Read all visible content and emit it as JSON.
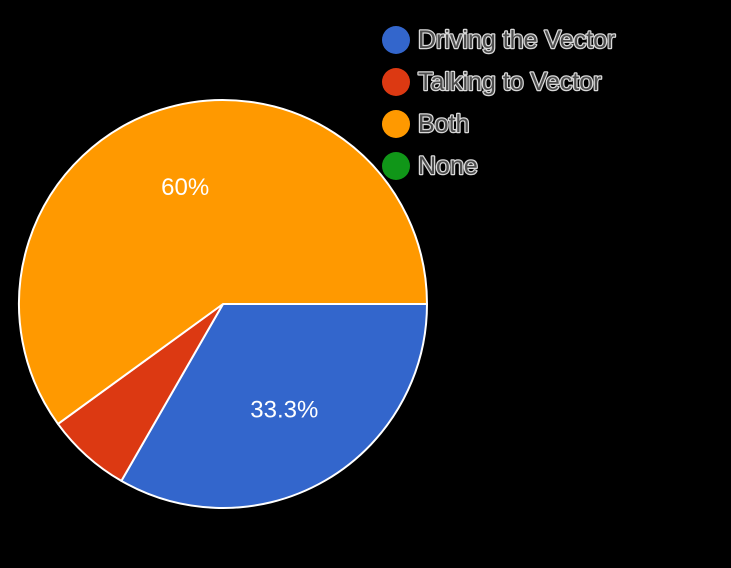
{
  "chart_data": {
    "type": "pie",
    "title": "",
    "categories": [
      "Driving the Vector",
      "Talking to Vector",
      "Both",
      "None"
    ],
    "values": [
      33.3,
      6.7,
      60,
      0
    ],
    "colors": [
      "#3366cc",
      "#dc3912",
      "#ff9900",
      "#109618"
    ],
    "slice_labels": [
      "33.3%",
      "",
      "60%",
      ""
    ],
    "legend_position": "top-right",
    "start_angle_deg": 90,
    "direction": "clockwise"
  },
  "background_color": "#000000"
}
